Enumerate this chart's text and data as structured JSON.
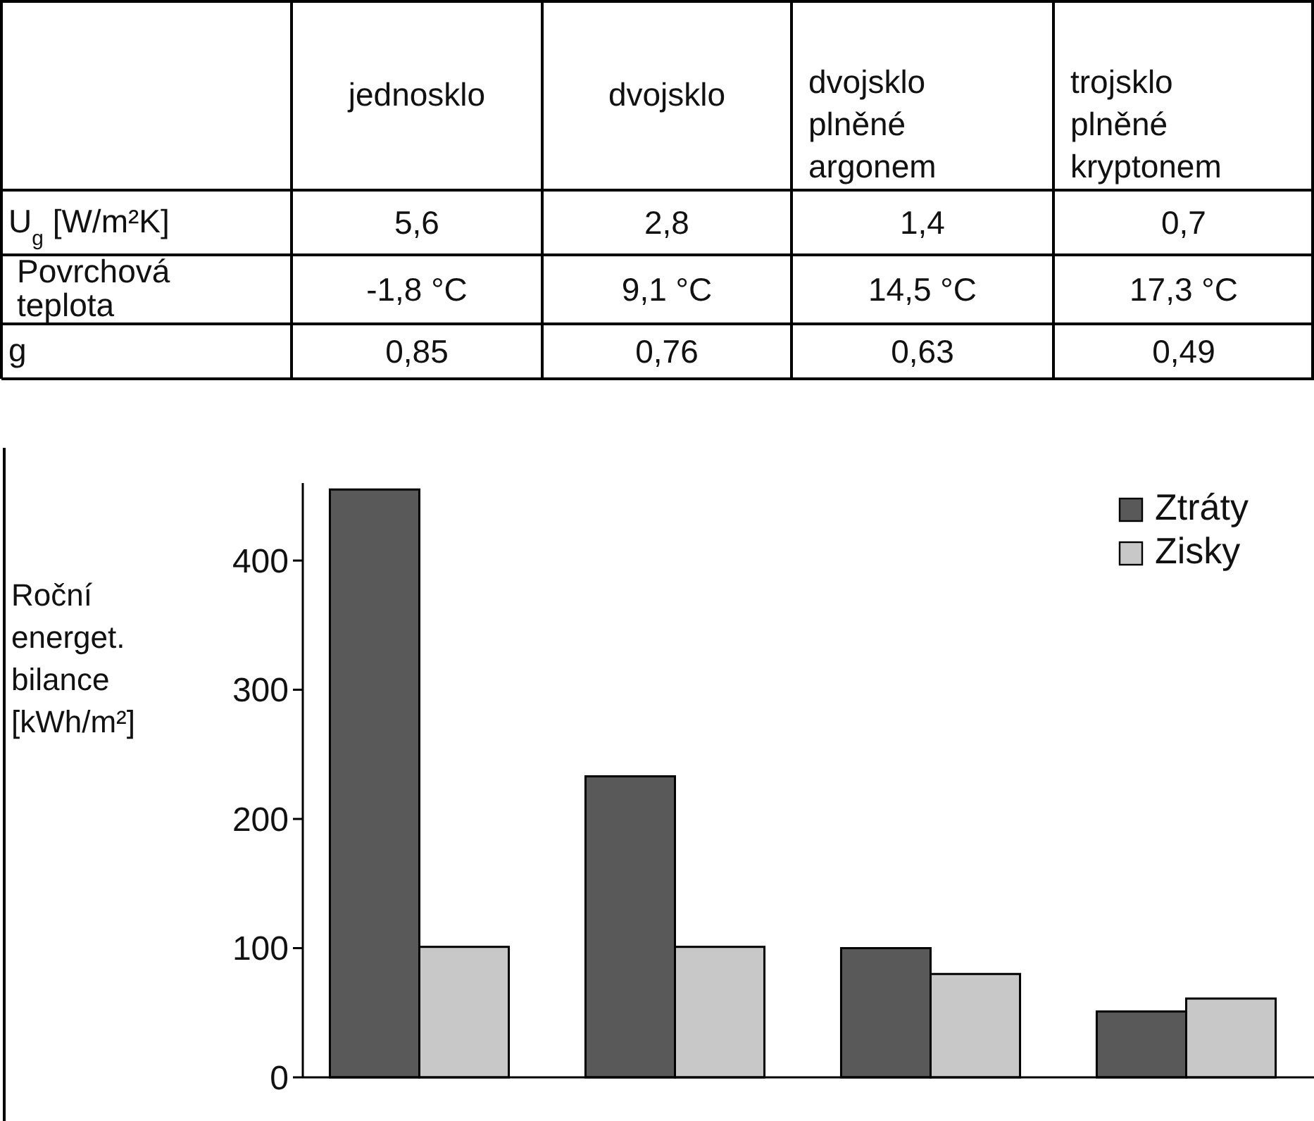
{
  "chart_data": [
    {
      "type": "other",
      "categories": [
        null,
        "jednosklo",
        "dvojsklo",
        "dvojsklo plněné argonem",
        "trojsklo plněné kryptonem"
      ],
      "y_categories": [
        "U$_{g}$ [W/m²K]",
        "Povrchová teplota",
        "g"
      ],
      "cell_labels": [
        [
          "5,6",
          "2,8",
          "1,4",
          "0,7"
        ],
        [
          "-1,8 °C",
          "9,1 °C",
          "14,5 °C",
          "17,3 °C"
        ],
        [
          "0,85",
          "0,76",
          "0,63",
          "0,49"
        ]
      ]
    },
    {
      "type": "bar",
      "ylabel": "Roční energet. bilance [kWh/m²]",
      "categories": [
        null,
        null,
        null,
        null
      ],
      "series": [
        {
          "name": "Ztráty",
          "color": "#595959",
          "values": [
            455,
            233,
            100,
            51
          ]
        },
        {
          "name": "Zisky",
          "color": "#c8c8c8",
          "values": [
            101,
            101,
            80,
            61
          ]
        }
      ],
      "ylim": [
        0,
        460
      ],
      "yticks": [
        0,
        100,
        200,
        300,
        400
      ],
      "legend": "top right",
      "grid": false
    }
  ]
}
